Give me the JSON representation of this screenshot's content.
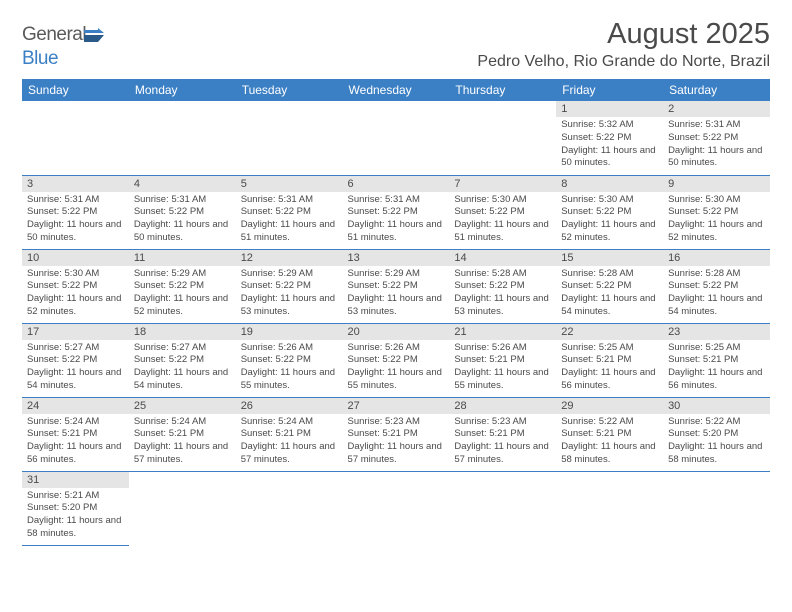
{
  "logo": {
    "text_gray": "General",
    "text_blue": "Blue"
  },
  "title": "August 2025",
  "location": "Pedro Velho, Rio Grande do Norte, Brazil",
  "colors": {
    "header_bg": "#3b7fc4",
    "header_text": "#ffffff",
    "daynum_bg": "#e5e5e5",
    "text": "#4a4a4a",
    "row_border": "#3b7fc4",
    "background": "#ffffff"
  },
  "day_headers": [
    "Sunday",
    "Monday",
    "Tuesday",
    "Wednesday",
    "Thursday",
    "Friday",
    "Saturday"
  ],
  "weeks": [
    [
      null,
      null,
      null,
      null,
      null,
      {
        "n": "1",
        "sr": "5:32 AM",
        "ss": "5:22 PM",
        "dl": "11 hours and 50 minutes."
      },
      {
        "n": "2",
        "sr": "5:31 AM",
        "ss": "5:22 PM",
        "dl": "11 hours and 50 minutes."
      }
    ],
    [
      {
        "n": "3",
        "sr": "5:31 AM",
        "ss": "5:22 PM",
        "dl": "11 hours and 50 minutes."
      },
      {
        "n": "4",
        "sr": "5:31 AM",
        "ss": "5:22 PM",
        "dl": "11 hours and 50 minutes."
      },
      {
        "n": "5",
        "sr": "5:31 AM",
        "ss": "5:22 PM",
        "dl": "11 hours and 51 minutes."
      },
      {
        "n": "6",
        "sr": "5:31 AM",
        "ss": "5:22 PM",
        "dl": "11 hours and 51 minutes."
      },
      {
        "n": "7",
        "sr": "5:30 AM",
        "ss": "5:22 PM",
        "dl": "11 hours and 51 minutes."
      },
      {
        "n": "8",
        "sr": "5:30 AM",
        "ss": "5:22 PM",
        "dl": "11 hours and 52 minutes."
      },
      {
        "n": "9",
        "sr": "5:30 AM",
        "ss": "5:22 PM",
        "dl": "11 hours and 52 minutes."
      }
    ],
    [
      {
        "n": "10",
        "sr": "5:30 AM",
        "ss": "5:22 PM",
        "dl": "11 hours and 52 minutes."
      },
      {
        "n": "11",
        "sr": "5:29 AM",
        "ss": "5:22 PM",
        "dl": "11 hours and 52 minutes."
      },
      {
        "n": "12",
        "sr": "5:29 AM",
        "ss": "5:22 PM",
        "dl": "11 hours and 53 minutes."
      },
      {
        "n": "13",
        "sr": "5:29 AM",
        "ss": "5:22 PM",
        "dl": "11 hours and 53 minutes."
      },
      {
        "n": "14",
        "sr": "5:28 AM",
        "ss": "5:22 PM",
        "dl": "11 hours and 53 minutes."
      },
      {
        "n": "15",
        "sr": "5:28 AM",
        "ss": "5:22 PM",
        "dl": "11 hours and 54 minutes."
      },
      {
        "n": "16",
        "sr": "5:28 AM",
        "ss": "5:22 PM",
        "dl": "11 hours and 54 minutes."
      }
    ],
    [
      {
        "n": "17",
        "sr": "5:27 AM",
        "ss": "5:22 PM",
        "dl": "11 hours and 54 minutes."
      },
      {
        "n": "18",
        "sr": "5:27 AM",
        "ss": "5:22 PM",
        "dl": "11 hours and 54 minutes."
      },
      {
        "n": "19",
        "sr": "5:26 AM",
        "ss": "5:22 PM",
        "dl": "11 hours and 55 minutes."
      },
      {
        "n": "20",
        "sr": "5:26 AM",
        "ss": "5:22 PM",
        "dl": "11 hours and 55 minutes."
      },
      {
        "n": "21",
        "sr": "5:26 AM",
        "ss": "5:21 PM",
        "dl": "11 hours and 55 minutes."
      },
      {
        "n": "22",
        "sr": "5:25 AM",
        "ss": "5:21 PM",
        "dl": "11 hours and 56 minutes."
      },
      {
        "n": "23",
        "sr": "5:25 AM",
        "ss": "5:21 PM",
        "dl": "11 hours and 56 minutes."
      }
    ],
    [
      {
        "n": "24",
        "sr": "5:24 AM",
        "ss": "5:21 PM",
        "dl": "11 hours and 56 minutes."
      },
      {
        "n": "25",
        "sr": "5:24 AM",
        "ss": "5:21 PM",
        "dl": "11 hours and 57 minutes."
      },
      {
        "n": "26",
        "sr": "5:24 AM",
        "ss": "5:21 PM",
        "dl": "11 hours and 57 minutes."
      },
      {
        "n": "27",
        "sr": "5:23 AM",
        "ss": "5:21 PM",
        "dl": "11 hours and 57 minutes."
      },
      {
        "n": "28",
        "sr": "5:23 AM",
        "ss": "5:21 PM",
        "dl": "11 hours and 57 minutes."
      },
      {
        "n": "29",
        "sr": "5:22 AM",
        "ss": "5:21 PM",
        "dl": "11 hours and 58 minutes."
      },
      {
        "n": "30",
        "sr": "5:22 AM",
        "ss": "5:20 PM",
        "dl": "11 hours and 58 minutes."
      }
    ],
    [
      {
        "n": "31",
        "sr": "5:21 AM",
        "ss": "5:20 PM",
        "dl": "11 hours and 58 minutes."
      },
      null,
      null,
      null,
      null,
      null,
      null
    ]
  ],
  "labels": {
    "sunrise": "Sunrise:",
    "sunset": "Sunset:",
    "daylight": "Daylight:"
  }
}
